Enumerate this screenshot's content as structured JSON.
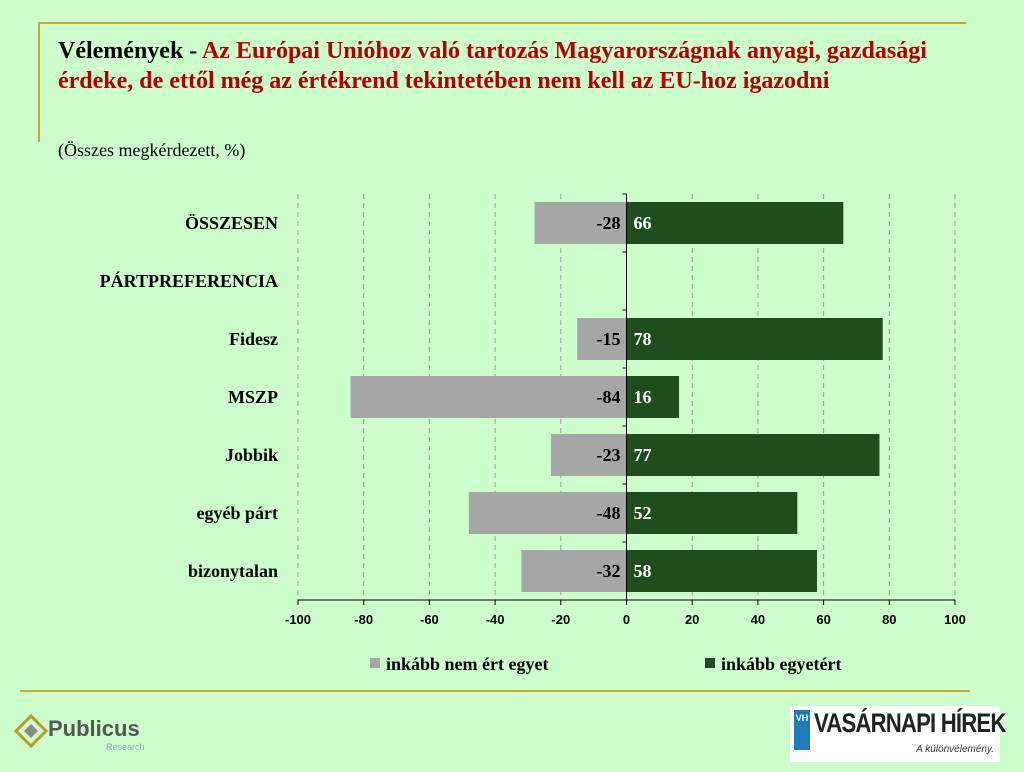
{
  "header": {
    "title_lead": "Vélemények - ",
    "title_main": "Az Európai Unióhoz való tartozás Magyarországnak anyagi, gazdasági érdeke, de ettől még az értékrend tekintetében nem kell az EU-hoz igazodni",
    "subtitle": "(Összes megkérdezett, %)"
  },
  "chart_data": {
    "type": "bar",
    "orientation": "horizontal",
    "stacked": "diverging",
    "categories": [
      "ÖSSZESEN",
      "PÁRTPREFERENCIA",
      "Fidesz",
      "MSZP",
      "Jobbik",
      "egyéb párt",
      "bizonytalan"
    ],
    "series": [
      {
        "name": "inkább nem ért egyet",
        "values": [
          -28,
          null,
          -15,
          -84,
          -23,
          -48,
          -32
        ],
        "color": "#a6a6a6"
      },
      {
        "name": "inkább egyetért",
        "values": [
          66,
          null,
          78,
          16,
          77,
          52,
          58
        ],
        "color": "#1e4d1e"
      }
    ],
    "xlim": [
      -100,
      100
    ],
    "xticks": [
      -100,
      -80,
      -60,
      -40,
      -20,
      0,
      20,
      40,
      60,
      80,
      100
    ],
    "grid": "vertical-dashed",
    "legend_position": "bottom"
  },
  "colors": {
    "background": "#ccffcc",
    "accent": "#c8a828",
    "title_red": "#b00000"
  },
  "logos": {
    "left_brand": "Publicus",
    "left_sub": "Research",
    "right_mark": "VH",
    "right_name": "VASÁRNAPI HÍREK",
    "right_tagline": "A különvélemény."
  }
}
